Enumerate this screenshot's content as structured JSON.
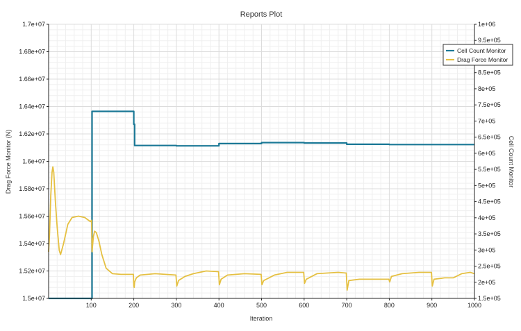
{
  "chart_data": {
    "type": "line",
    "title": "Reports Plot",
    "xlabel": "Iteration",
    "ylabel_left": "Drag Force Monitor (N)",
    "ylabel_right": "Cell Count Monitor",
    "xlim": [
      0,
      1000
    ],
    "ylim_left": [
      15000000,
      17000000
    ],
    "ylim_right": [
      150000,
      1000000
    ],
    "grid": true,
    "legend_position": "top-right",
    "x_ticks": [
      "100",
      "200",
      "300",
      "400",
      "500",
      "600",
      "700",
      "800",
      "900",
      "1000"
    ],
    "x_tick_values": [
      100,
      200,
      300,
      400,
      500,
      600,
      700,
      800,
      900,
      1000
    ],
    "left_ticks": [
      "1.5e+07",
      "1.52e+07",
      "1.54e+07",
      "1.56e+07",
      "1.58e+07",
      "1.6e+07",
      "1.62e+07",
      "1.64e+07",
      "1.66e+07",
      "1.68e+07",
      "1.7e+07"
    ],
    "left_tick_values": [
      15000000,
      15200000,
      15400000,
      15600000,
      15800000,
      16000000,
      16200000,
      16400000,
      16600000,
      16800000,
      17000000
    ],
    "right_ticks": [
      "1.5e+05",
      "2e+05",
      "2.5e+05",
      "3e+05",
      "3.5e+05",
      "4e+05",
      "4.5e+05",
      "5e+05",
      "5.5e+05",
      "6e+05",
      "6.5e+05",
      "7e+05",
      "7.5e+05",
      "8e+05",
      "8.5e+05",
      "9e+05",
      "9.5e+05",
      "1e+06"
    ],
    "right_tick_values": [
      150000,
      200000,
      250000,
      300000,
      350000,
      400000,
      450000,
      500000,
      550000,
      600000,
      650000,
      700000,
      750000,
      800000,
      850000,
      900000,
      950000,
      1000000
    ],
    "series": [
      {
        "name": "Cell Count Monitor",
        "axis": "right",
        "color": "#1a7896",
        "points": [
          [
            0,
            150000
          ],
          [
            102,
            150000
          ],
          [
            102,
            730000
          ],
          [
            200,
            730000
          ],
          [
            200,
            690000
          ],
          [
            202,
            690000
          ],
          [
            202,
            624000
          ],
          [
            300,
            624000
          ],
          [
            300,
            623000
          ],
          [
            400,
            623000
          ],
          [
            400,
            630000
          ],
          [
            500,
            630000
          ],
          [
            500,
            633000
          ],
          [
            600,
            633000
          ],
          [
            600,
            632000
          ],
          [
            700,
            632000
          ],
          [
            700,
            628000
          ],
          [
            800,
            628000
          ],
          [
            800,
            627000
          ],
          [
            1000,
            627000
          ]
        ]
      },
      {
        "name": "Drag Force Monitor",
        "axis": "left",
        "color": "#e5c042",
        "points": [
          [
            0,
            15340000
          ],
          [
            2,
            15450000
          ],
          [
            5,
            15750000
          ],
          [
            8,
            15920000
          ],
          [
            10,
            15960000
          ],
          [
            12,
            15920000
          ],
          [
            16,
            15700000
          ],
          [
            20,
            15520000
          ],
          [
            25,
            15350000
          ],
          [
            28,
            15320000
          ],
          [
            35,
            15400000
          ],
          [
            45,
            15540000
          ],
          [
            55,
            15590000
          ],
          [
            70,
            15600000
          ],
          [
            85,
            15590000
          ],
          [
            98,
            15560000
          ],
          [
            101,
            15570000
          ],
          [
            102,
            15340000
          ],
          [
            105,
            15450000
          ],
          [
            108,
            15490000
          ],
          [
            112,
            15480000
          ],
          [
            118,
            15420000
          ],
          [
            125,
            15320000
          ],
          [
            135,
            15220000
          ],
          [
            150,
            15180000
          ],
          [
            170,
            15175000
          ],
          [
            199,
            15175000
          ],
          [
            200,
            15090000
          ],
          [
            201,
            15080000
          ],
          [
            202,
            15120000
          ],
          [
            206,
            15150000
          ],
          [
            215,
            15170000
          ],
          [
            250,
            15180000
          ],
          [
            299,
            15170000
          ],
          [
            301,
            15090000
          ],
          [
            305,
            15130000
          ],
          [
            320,
            15160000
          ],
          [
            340,
            15180000
          ],
          [
            370,
            15200000
          ],
          [
            399,
            15195000
          ],
          [
            401,
            15100000
          ],
          [
            405,
            15140000
          ],
          [
            420,
            15170000
          ],
          [
            460,
            15180000
          ],
          [
            499,
            15175000
          ],
          [
            501,
            15100000
          ],
          [
            505,
            15130000
          ],
          [
            530,
            15170000
          ],
          [
            560,
            15190000
          ],
          [
            599,
            15190000
          ],
          [
            601,
            15110000
          ],
          [
            605,
            15140000
          ],
          [
            630,
            15180000
          ],
          [
            680,
            15190000
          ],
          [
            699,
            15185000
          ],
          [
            701,
            15060000
          ],
          [
            705,
            15130000
          ],
          [
            730,
            15140000
          ],
          [
            770,
            15140000
          ],
          [
            799,
            15140000
          ],
          [
            801,
            15120000
          ],
          [
            805,
            15160000
          ],
          [
            830,
            15180000
          ],
          [
            870,
            15190000
          ],
          [
            899,
            15190000
          ],
          [
            901,
            15090000
          ],
          [
            905,
            15140000
          ],
          [
            930,
            15150000
          ],
          [
            950,
            15150000
          ],
          [
            970,
            15180000
          ],
          [
            990,
            15190000
          ],
          [
            1000,
            15180000
          ]
        ]
      }
    ]
  }
}
